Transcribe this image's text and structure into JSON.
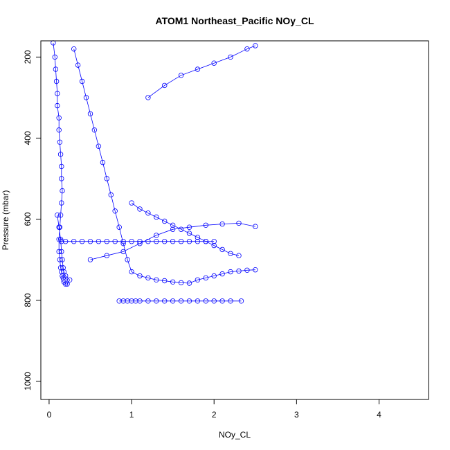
{
  "chart_data": {
    "type": "scatter",
    "title": "ATOM1 Northeast_Pacific NOy_CL",
    "xlabel": "NOy_CL",
    "ylabel": "Pressure (mbar)",
    "xlim": [
      -0.1,
      4.6
    ],
    "ylim": [
      1045,
      160
    ],
    "y_reversed": true,
    "x_ticks": [
      0,
      1,
      2,
      3,
      4
    ],
    "y_ticks": [
      200,
      400,
      600,
      800,
      1000
    ],
    "grid": false,
    "legend": "none",
    "marker": "open-circle",
    "connect_points": true,
    "color": "#0000ff",
    "series": [
      {
        "x": [
          0.05,
          0.07,
          0.08,
          0.09,
          0.1,
          0.1,
          0.12,
          0.12,
          0.13,
          0.14,
          0.15,
          0.15,
          0.16,
          0.15,
          0.14,
          0.13,
          0.12,
          0.12,
          0.13,
          0.14,
          0.15,
          0.16,
          0.17,
          0.18,
          0.18,
          0.2,
          0.22,
          0.25,
          0.2,
          0.18,
          0.17,
          0.16,
          0.15,
          0.14,
          0.12,
          0.1
        ],
        "y": [
          165,
          200,
          230,
          260,
          290,
          320,
          350,
          380,
          410,
          440,
          470,
          500,
          530,
          560,
          590,
          620,
          650,
          680,
          700,
          720,
          730,
          740,
          745,
          750,
          755,
          760,
          760,
          750,
          740,
          730,
          720,
          700,
          680,
          650,
          620,
          590
        ]
      },
      {
        "x": [
          0.3,
          0.35,
          0.4,
          0.45,
          0.5,
          0.55,
          0.6,
          0.65,
          0.7,
          0.75,
          0.8,
          0.85,
          0.9,
          0.95,
          1.0,
          1.1,
          1.2,
          1.3,
          1.4,
          1.5,
          1.6,
          1.7,
          1.8,
          1.9,
          2.0,
          2.1,
          2.2,
          2.3,
          2.4,
          2.5
        ],
        "y": [
          180,
          220,
          260,
          300,
          340,
          380,
          420,
          460,
          500,
          540,
          580,
          620,
          660,
          700,
          730,
          740,
          745,
          750,
          752,
          755,
          757,
          758,
          750,
          745,
          740,
          735,
          730,
          728,
          726,
          725
        ]
      },
      {
        "x": [
          0.85,
          0.9,
          0.95,
          1.0,
          1.05,
          1.1,
          1.2,
          1.3,
          1.4,
          1.5,
          1.6,
          1.7,
          1.8,
          1.9,
          2.0,
          2.1,
          2.2,
          2.33
        ],
        "y": [
          802,
          802,
          802,
          802,
          802,
          802,
          802,
          802,
          802,
          802,
          802,
          802,
          802,
          802,
          802,
          802,
          802,
          802
        ]
      },
      {
        "x": [
          0.15,
          0.2,
          0.3,
          0.4,
          0.5,
          0.6,
          0.7,
          0.8,
          0.9,
          1.0,
          1.1,
          1.2,
          1.3,
          1.4,
          1.5,
          1.6,
          1.7,
          1.8,
          1.9,
          2.0
        ],
        "y": [
          655,
          655,
          655,
          655,
          655,
          655,
          655,
          655,
          655,
          655,
          655,
          655,
          655,
          655,
          655,
          655,
          655,
          655,
          655,
          655
        ]
      },
      {
        "x": [
          0.5,
          0.7,
          0.9,
          1.1,
          1.3,
          1.5,
          1.7,
          1.9,
          2.1,
          2.3,
          2.5
        ],
        "y": [
          700,
          690,
          680,
          660,
          640,
          625,
          620,
          615,
          612,
          610,
          618
        ]
      },
      {
        "x": [
          1.2,
          1.4,
          1.6,
          1.8,
          2.0,
          2.2,
          2.4,
          2.5
        ],
        "y": [
          300,
          270,
          245,
          230,
          215,
          200,
          180,
          172
        ]
      },
      {
        "x": [
          1.0,
          1.1,
          1.2,
          1.3,
          1.4,
          1.5,
          1.6,
          1.7,
          1.8,
          1.9,
          2.0,
          2.1,
          2.2,
          2.3
        ],
        "y": [
          560,
          575,
          585,
          595,
          605,
          615,
          625,
          635,
          645,
          655,
          665,
          675,
          685,
          690
        ]
      }
    ]
  }
}
